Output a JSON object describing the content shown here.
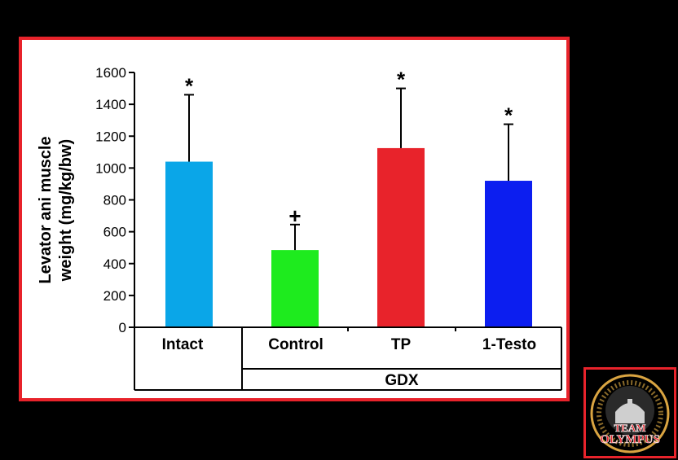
{
  "chart_data": {
    "type": "bar",
    "categories": [
      "Intact",
      "Control",
      "TP",
      "1-Testo"
    ],
    "values": [
      1040,
      485,
      1125,
      920
    ],
    "errors_upper": [
      1460,
      645,
      1500,
      1275
    ],
    "significance_marks": [
      "*",
      "+",
      "*",
      "*"
    ],
    "colors": [
      "#0aa6e8",
      "#1eeb1e",
      "#e8232b",
      "#0c1ef0"
    ],
    "ylabel": [
      "Levator ani muscle",
      "weight (mg/kg/bw)"
    ],
    "xlabel": "",
    "ylim": [
      0,
      1600
    ],
    "yticks": [
      0,
      200,
      400,
      600,
      800,
      1000,
      1200,
      1400,
      1600
    ],
    "group_label": "GDX",
    "grid": false
  },
  "logo": {
    "text_line1": "TEAM",
    "text_line2": "OLYMPUS",
    "ring_color": "#d9a441",
    "text_color": "#e8232b"
  }
}
